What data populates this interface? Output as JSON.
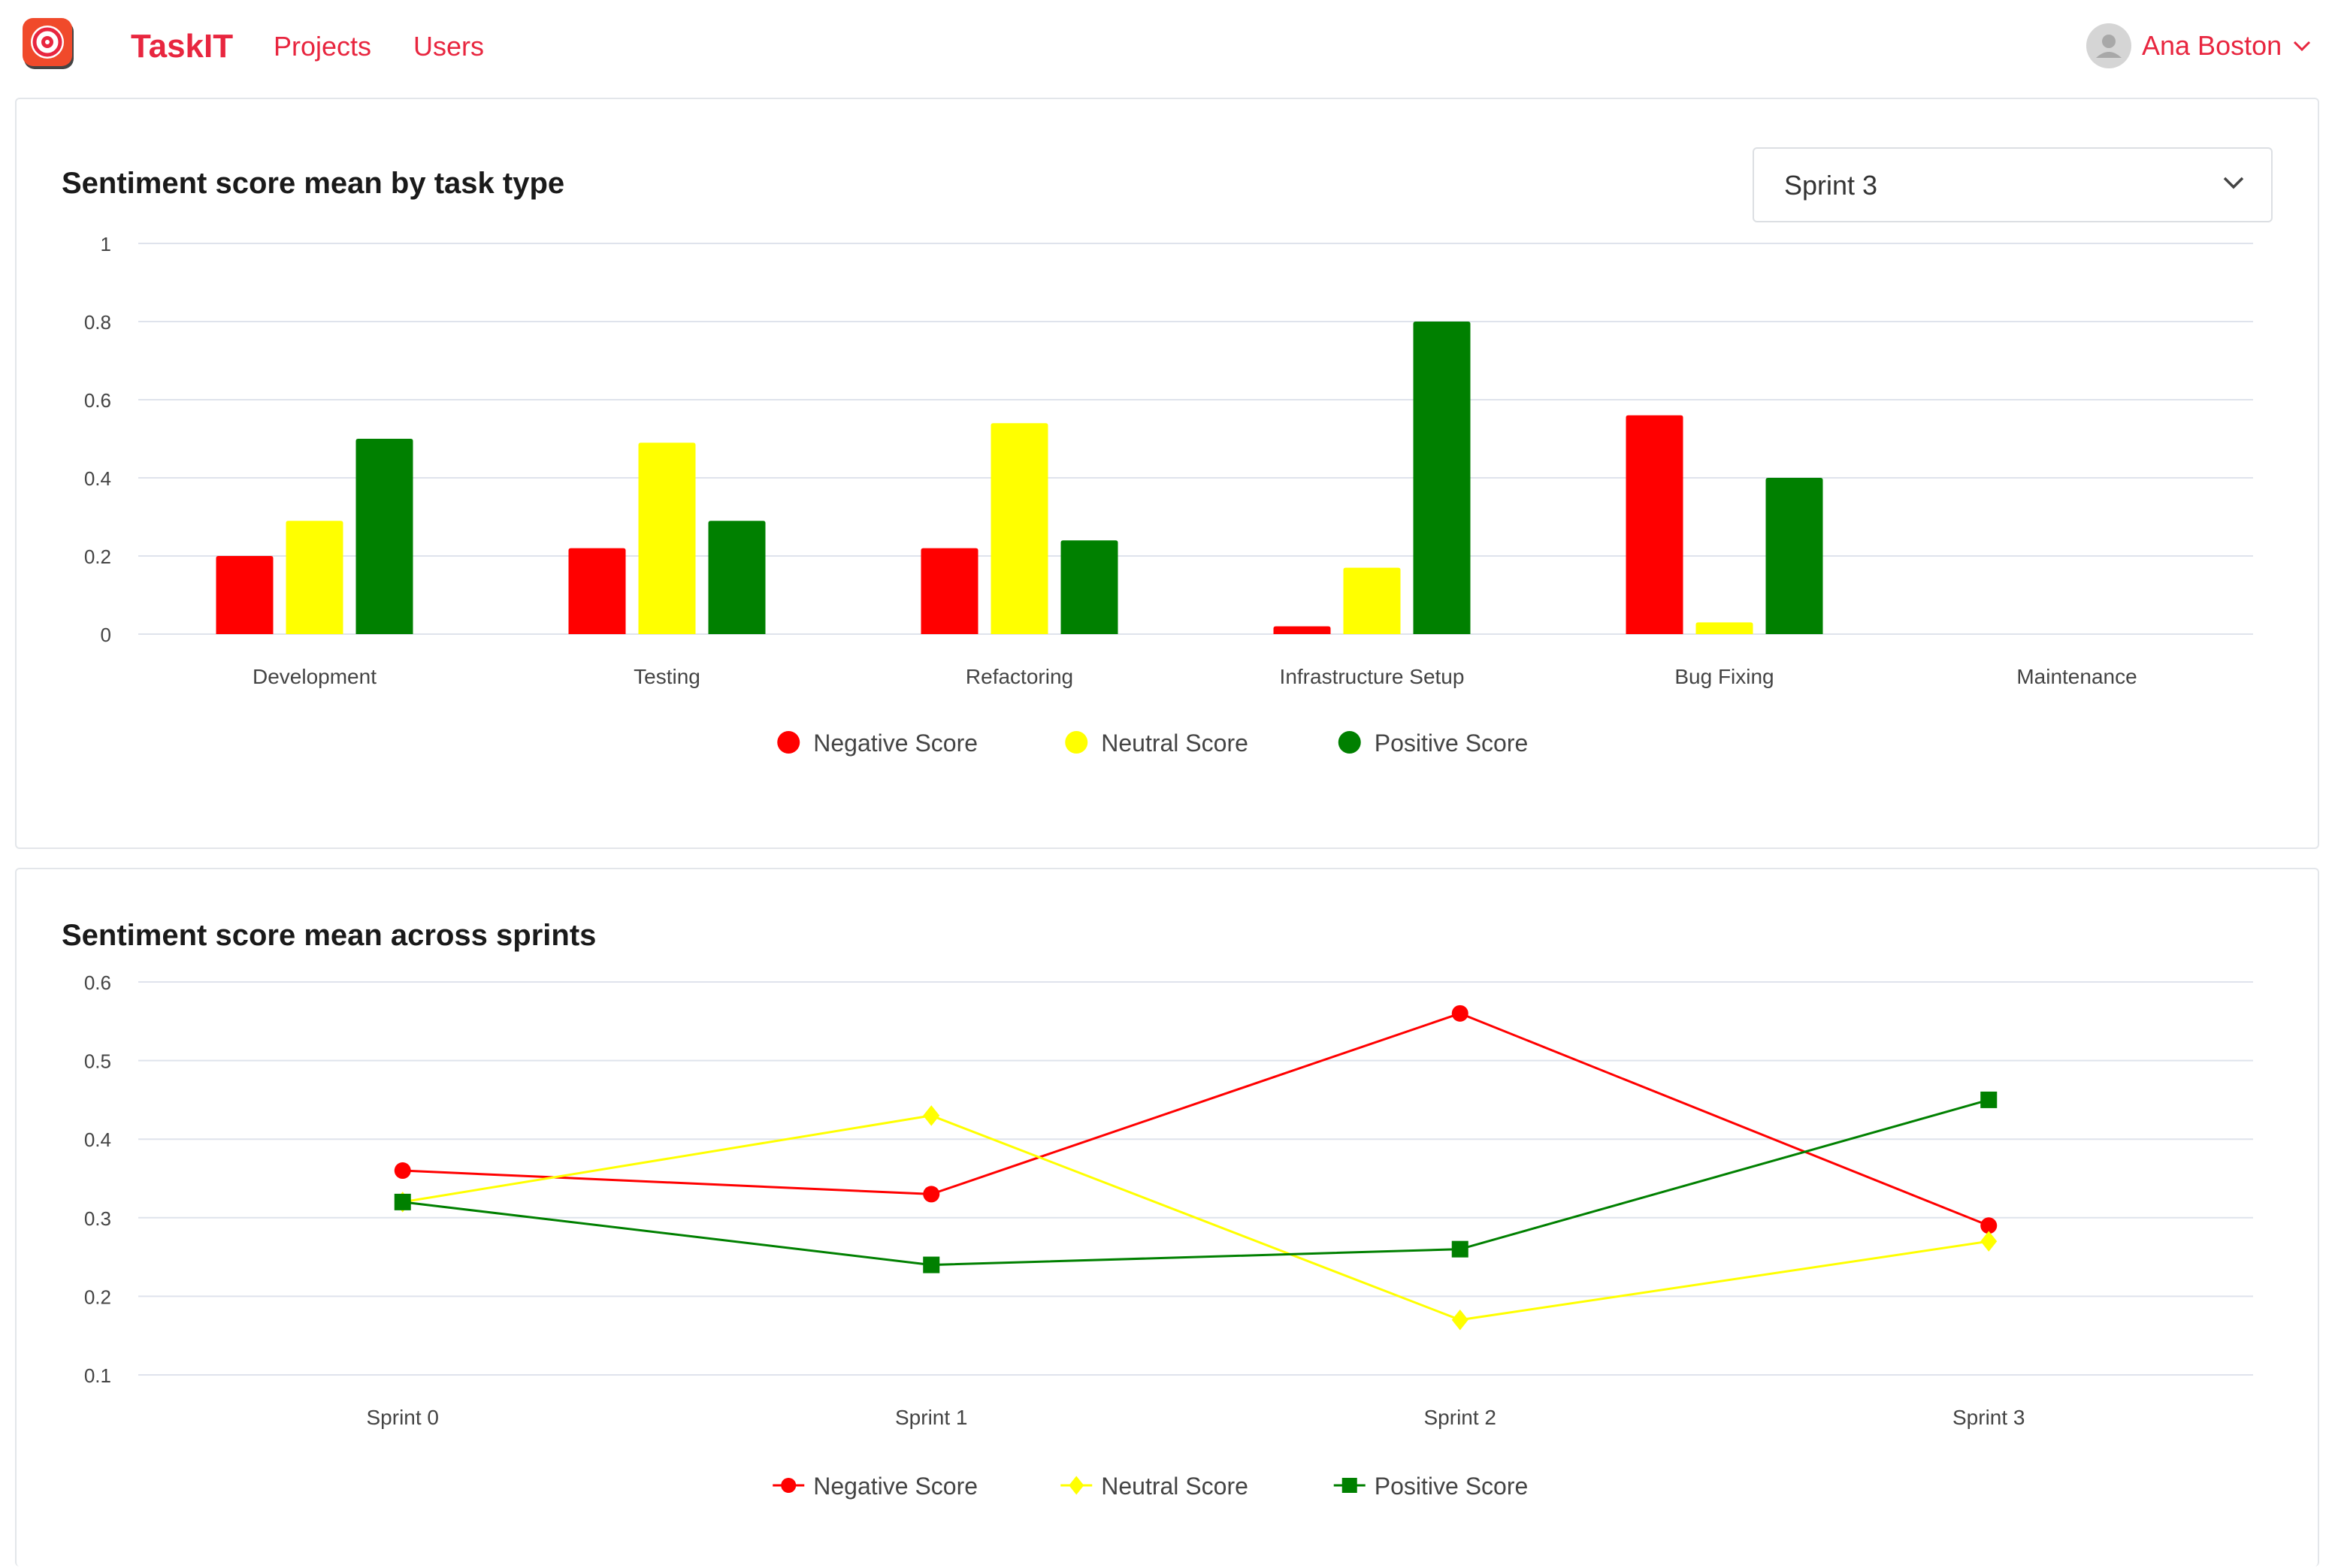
{
  "app": {
    "name": "TaskIT",
    "nav": [
      {
        "label": "Projects"
      },
      {
        "label": "Users"
      }
    ],
    "user": {
      "name": "Ana Boston"
    }
  },
  "bar_card": {
    "title": "Sentiment score mean by task type",
    "sprint_select": {
      "value": "Sprint 3"
    }
  },
  "line_card": {
    "title": "Sentiment score mean across sprints"
  },
  "colors": {
    "brand": "#e8263f",
    "negative": "#ff0000",
    "neutral": "#ffff00",
    "positive": "#008000",
    "grid": "#dfe3ec"
  },
  "chart_data": [
    {
      "type": "bar",
      "title": "Sentiment score mean by task type",
      "categories": [
        "Development",
        "Testing",
        "Refactoring",
        "Infrastructure Setup",
        "Bug Fixing",
        "Maintenance"
      ],
      "series": [
        {
          "name": "Negative Score",
          "color": "#ff0000",
          "values": [
            0.2,
            0.22,
            0.22,
            0.02,
            0.56,
            null
          ]
        },
        {
          "name": "Neutral Score",
          "color": "#ffff00",
          "values": [
            0.29,
            0.49,
            0.54,
            0.17,
            0.03,
            null
          ]
        },
        {
          "name": "Positive Score",
          "color": "#008000",
          "values": [
            0.5,
            0.29,
            0.24,
            0.8,
            0.4,
            null
          ]
        }
      ],
      "ylim": [
        0,
        1
      ],
      "yticks": [
        "0",
        "0.2",
        "0.4",
        "0.6",
        "0.8",
        "1"
      ],
      "grid": true,
      "legend": "bottom-center"
    },
    {
      "type": "line",
      "title": "Sentiment score mean across sprints",
      "categories": [
        "Sprint 0",
        "Sprint 1",
        "Sprint 2",
        "Sprint 3"
      ],
      "series": [
        {
          "name": "Negative Score",
          "color": "#ff0000",
          "marker": "circle",
          "values": [
            0.36,
            0.33,
            0.56,
            0.29
          ]
        },
        {
          "name": "Neutral Score",
          "color": "#ffff00",
          "marker": "diamond",
          "values": [
            0.32,
            0.43,
            0.17,
            0.27
          ]
        },
        {
          "name": "Positive Score",
          "color": "#008000",
          "marker": "square",
          "values": [
            0.32,
            0.24,
            0.26,
            0.45
          ]
        }
      ],
      "ylim": [
        0.1,
        0.6
      ],
      "yticks": [
        "0.1",
        "0.2",
        "0.3",
        "0.4",
        "0.5",
        "0.6"
      ],
      "grid": true,
      "legend": "bottom-center"
    }
  ]
}
